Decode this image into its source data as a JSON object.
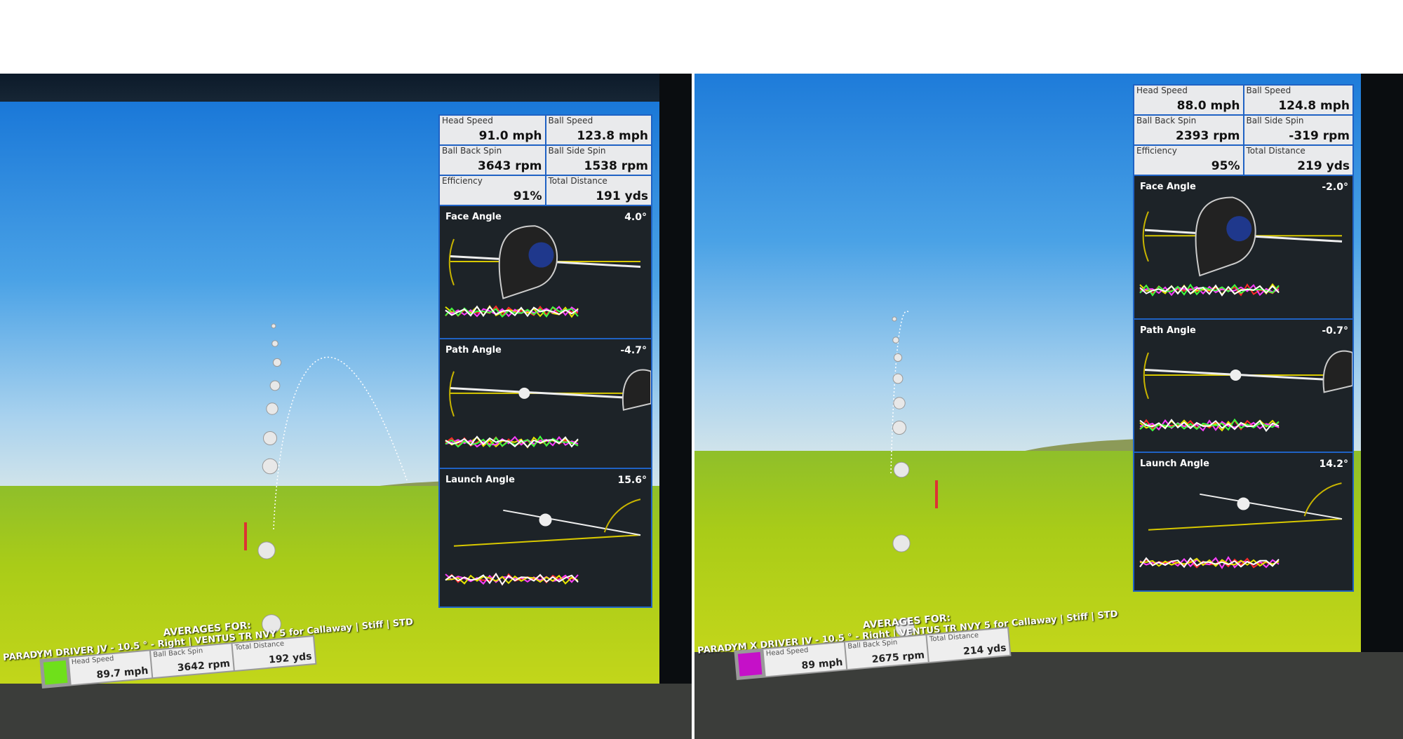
{
  "shots": [
    {
      "stats": [
        {
          "label": "Head Speed",
          "value": "91.0 mph"
        },
        {
          "label": "Ball Speed",
          "value": "123.8 mph"
        },
        {
          "label": "Ball Back Spin",
          "value": "3643 rpm"
        },
        {
          "label": "Ball Side Spin",
          "value": "1538 rpm"
        },
        {
          "label": "Efficiency",
          "value": "91%"
        },
        {
          "label": "Total Distance",
          "value": "191 yds"
        }
      ],
      "sections": [
        {
          "title": "Face Angle",
          "value": "4.0°"
        },
        {
          "title": "Path Angle",
          "value": "-4.7°"
        },
        {
          "title": "Launch Angle",
          "value": "15.6°"
        }
      ],
      "averages": {
        "heading": "AVERAGES FOR:",
        "club": "PARADYM DRIVER JV - 10.5 ° - Right | VENTUS TR NVY 5 for Callaway | Stiff | STD",
        "swatch_color": "#6fe01a",
        "cells": [
          {
            "label": "Head Speed",
            "value": "89.7 mph"
          },
          {
            "label": "Ball Back Spin",
            "value": "3642 rpm"
          },
          {
            "label": "Total Distance",
            "value": "192 yds"
          }
        ]
      }
    },
    {
      "stats": [
        {
          "label": "Head Speed",
          "value": "88.0 mph"
        },
        {
          "label": "Ball Speed",
          "value": "124.8 mph"
        },
        {
          "label": "Ball Back Spin",
          "value": "2393 rpm"
        },
        {
          "label": "Ball Side Spin",
          "value": "-319 rpm"
        },
        {
          "label": "Efficiency",
          "value": "95%"
        },
        {
          "label": "Total Distance",
          "value": "219 yds"
        }
      ],
      "sections": [
        {
          "title": "Face Angle",
          "value": "-2.0°"
        },
        {
          "title": "Path Angle",
          "value": "-0.7°"
        },
        {
          "title": "Launch Angle",
          "value": "14.2°"
        }
      ],
      "averages": {
        "heading": "AVERAGES FOR:",
        "club": "PARADYM X DRIVER JV - 10.5 ° - Right | VENTUS TR NVY 5 for Callaway | Stiff | STD",
        "swatch_color": "#c510c8",
        "cells": [
          {
            "label": "Head Speed",
            "value": "89 mph"
          },
          {
            "label": "Ball Back Spin",
            "value": "2675 rpm"
          },
          {
            "label": "Total Distance",
            "value": "214 yds"
          }
        ]
      }
    }
  ]
}
